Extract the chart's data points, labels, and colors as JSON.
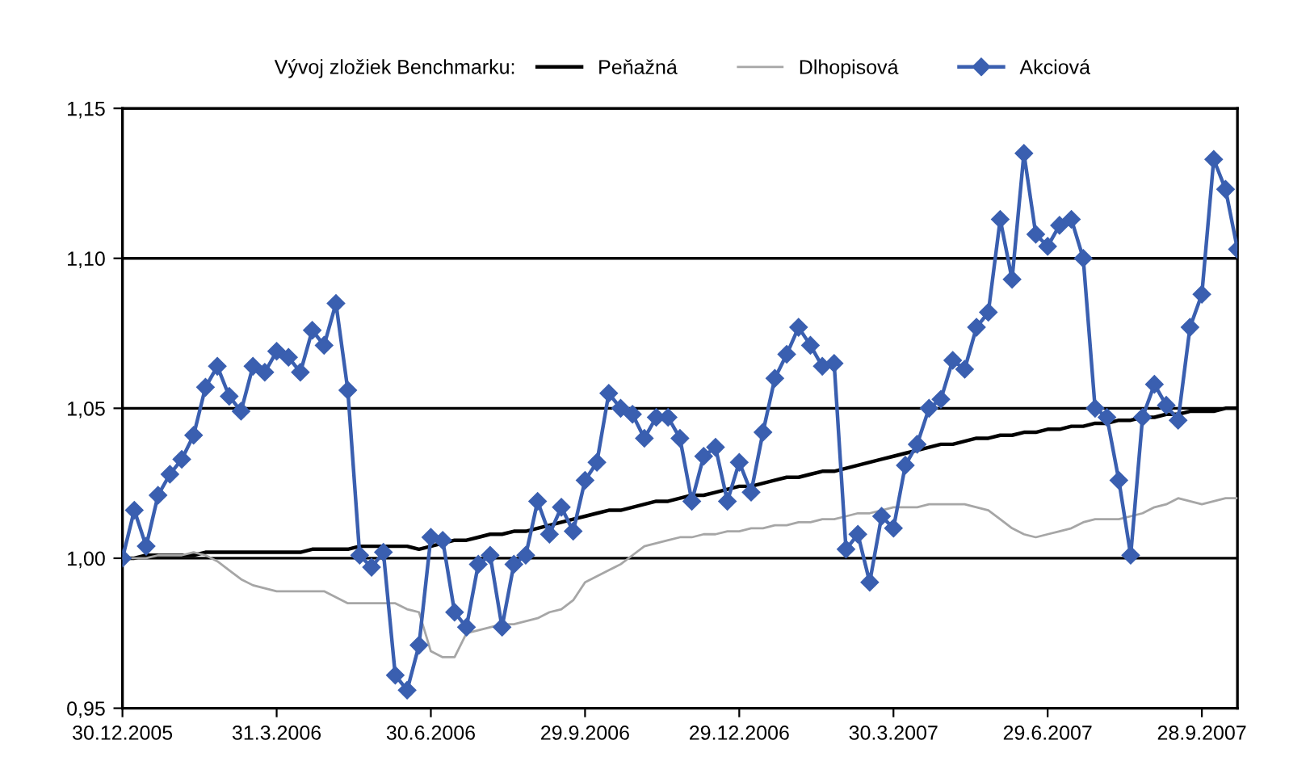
{
  "chart_data": {
    "type": "line",
    "legend_title": "Vývoj zložiek Benchmarku:",
    "x": [
      "2005-12-30",
      "2006-01-06",
      "2006-01-13",
      "2006-01-20",
      "2006-01-27",
      "2006-02-03",
      "2006-02-10",
      "2006-02-17",
      "2006-02-24",
      "2006-03-03",
      "2006-03-10",
      "2006-03-17",
      "2006-03-24",
      "2006-03-31",
      "2006-04-07",
      "2006-04-14",
      "2006-04-21",
      "2006-04-28",
      "2006-05-05",
      "2006-05-12",
      "2006-05-19",
      "2006-05-26",
      "2006-06-02",
      "2006-06-09",
      "2006-06-16",
      "2006-06-23",
      "2006-06-30",
      "2006-07-07",
      "2006-07-14",
      "2006-07-21",
      "2006-07-28",
      "2006-08-04",
      "2006-08-11",
      "2006-08-18",
      "2006-08-25",
      "2006-09-01",
      "2006-09-08",
      "2006-09-15",
      "2006-09-22",
      "2006-09-29",
      "2006-10-06",
      "2006-10-13",
      "2006-10-20",
      "2006-10-27",
      "2006-11-03",
      "2006-11-10",
      "2006-11-17",
      "2006-11-24",
      "2006-12-01",
      "2006-12-08",
      "2006-12-15",
      "2006-12-22",
      "2006-12-29",
      "2007-01-05",
      "2007-01-12",
      "2007-01-19",
      "2007-01-26",
      "2007-02-02",
      "2007-02-09",
      "2007-02-16",
      "2007-02-23",
      "2007-03-02",
      "2007-03-09",
      "2007-03-16",
      "2007-03-23",
      "2007-03-30",
      "2007-04-06",
      "2007-04-13",
      "2007-04-20",
      "2007-04-27",
      "2007-05-04",
      "2007-05-11",
      "2007-05-18",
      "2007-05-25",
      "2007-06-01",
      "2007-06-08",
      "2007-06-15",
      "2007-06-22",
      "2007-06-29",
      "2007-07-06",
      "2007-07-13",
      "2007-07-20",
      "2007-07-27",
      "2007-08-03",
      "2007-08-10",
      "2007-08-17",
      "2007-08-24",
      "2007-08-31",
      "2007-09-07",
      "2007-09-14",
      "2007-09-21",
      "2007-09-28",
      "2007-10-05",
      "2007-10-12",
      "2007-10-19"
    ],
    "series": [
      {
        "name": "Peňažná",
        "color": "#000000",
        "marker": "none",
        "values": [
          1.0,
          1.0,
          1.001,
          1.001,
          1.001,
          1.001,
          1.001,
          1.002,
          1.002,
          1.002,
          1.002,
          1.002,
          1.002,
          1.002,
          1.002,
          1.002,
          1.003,
          1.003,
          1.003,
          1.003,
          1.004,
          1.004,
          1.004,
          1.004,
          1.004,
          1.003,
          1.004,
          1.005,
          1.006,
          1.006,
          1.007,
          1.008,
          1.008,
          1.009,
          1.009,
          1.01,
          1.011,
          1.012,
          1.013,
          1.014,
          1.015,
          1.016,
          1.016,
          1.017,
          1.018,
          1.019,
          1.019,
          1.02,
          1.021,
          1.021,
          1.022,
          1.023,
          1.024,
          1.024,
          1.025,
          1.026,
          1.027,
          1.027,
          1.028,
          1.029,
          1.029,
          1.03,
          1.031,
          1.032,
          1.033,
          1.034,
          1.035,
          1.036,
          1.037,
          1.038,
          1.038,
          1.039,
          1.04,
          1.04,
          1.041,
          1.041,
          1.042,
          1.042,
          1.043,
          1.043,
          1.044,
          1.044,
          1.045,
          1.045,
          1.046,
          1.046,
          1.047,
          1.047,
          1.048,
          1.048,
          1.049,
          1.049,
          1.049,
          1.05,
          1.05
        ]
      },
      {
        "name": "Dlhopisová",
        "color": "#a6a6a6",
        "marker": "none",
        "values": [
          1.0,
          1.0,
          1.0,
          1.001,
          1.001,
          1.001,
          1.002,
          1.001,
          0.999,
          0.996,
          0.993,
          0.991,
          0.99,
          0.989,
          0.989,
          0.989,
          0.989,
          0.989,
          0.987,
          0.985,
          0.985,
          0.985,
          0.985,
          0.985,
          0.983,
          0.982,
          0.969,
          0.967,
          0.967,
          0.975,
          0.976,
          0.977,
          0.978,
          0.978,
          0.979,
          0.98,
          0.982,
          0.983,
          0.986,
          0.992,
          0.994,
          0.996,
          0.998,
          1.001,
          1.004,
          1.005,
          1.006,
          1.007,
          1.007,
          1.008,
          1.008,
          1.009,
          1.009,
          1.01,
          1.01,
          1.011,
          1.011,
          1.012,
          1.012,
          1.013,
          1.013,
          1.014,
          1.015,
          1.015,
          1.016,
          1.017,
          1.017,
          1.017,
          1.018,
          1.018,
          1.018,
          1.018,
          1.017,
          1.016,
          1.013,
          1.01,
          1.008,
          1.007,
          1.008,
          1.009,
          1.01,
          1.012,
          1.013,
          1.013,
          1.013,
          1.014,
          1.015,
          1.017,
          1.018,
          1.02,
          1.019,
          1.018,
          1.019,
          1.02,
          1.02
        ]
      },
      {
        "name": "Akciová",
        "color": "#3a5fb0",
        "marker": "diamond",
        "values": [
          1.0,
          1.016,
          1.004,
          1.021,
          1.028,
          1.033,
          1.041,
          1.057,
          1.064,
          1.054,
          1.049,
          1.064,
          1.062,
          1.069,
          1.067,
          1.062,
          1.076,
          1.071,
          1.085,
          1.056,
          1.001,
          0.997,
          1.002,
          0.961,
          0.956,
          0.971,
          1.007,
          1.006,
          0.982,
          0.977,
          0.998,
          1.001,
          0.977,
          0.998,
          1.001,
          1.019,
          1.008,
          1.017,
          1.009,
          1.026,
          1.032,
          1.055,
          1.05,
          1.048,
          1.04,
          1.047,
          1.047,
          1.04,
          1.019,
          1.034,
          1.037,
          1.019,
          1.032,
          1.022,
          1.042,
          1.06,
          1.068,
          1.077,
          1.071,
          1.064,
          1.065,
          1.003,
          1.008,
          0.992,
          1.014,
          1.01,
          1.031,
          1.038,
          1.05,
          1.053,
          1.066,
          1.063,
          1.077,
          1.082,
          1.113,
          1.093,
          1.135,
          1.108,
          1.104,
          1.111,
          1.113,
          1.1,
          1.05,
          1.047,
          1.026,
          1.001,
          1.047,
          1.058,
          1.051,
          1.046,
          1.077,
          1.088,
          1.133,
          1.123,
          1.103
        ]
      }
    ],
    "xlim": [
      "2005-12-30",
      "2007-10-19"
    ],
    "xticks": [
      {
        "value": "2005-12-30",
        "label": "30.12.2005"
      },
      {
        "value": "2006-03-31",
        "label": "31.3.2006"
      },
      {
        "value": "2006-06-30",
        "label": "30.6.2006"
      },
      {
        "value": "2006-09-29",
        "label": "29.9.2006"
      },
      {
        "value": "2006-12-29",
        "label": "29.12.2006"
      },
      {
        "value": "2007-03-30",
        "label": "30.3.2007"
      },
      {
        "value": "2007-06-29",
        "label": "29.6.2007"
      },
      {
        "value": "2007-09-28",
        "label": "28.9.2007"
      }
    ],
    "ylim": [
      0.95,
      1.15
    ],
    "yticks": [
      {
        "value": 0.95,
        "label": "0,95"
      },
      {
        "value": 1.0,
        "label": "1,00"
      },
      {
        "value": 1.05,
        "label": "1,05"
      },
      {
        "value": 1.1,
        "label": "1,10"
      },
      {
        "value": 1.15,
        "label": "1,15"
      }
    ],
    "grid": "y",
    "legend": "top",
    "line_style": "solid"
  }
}
